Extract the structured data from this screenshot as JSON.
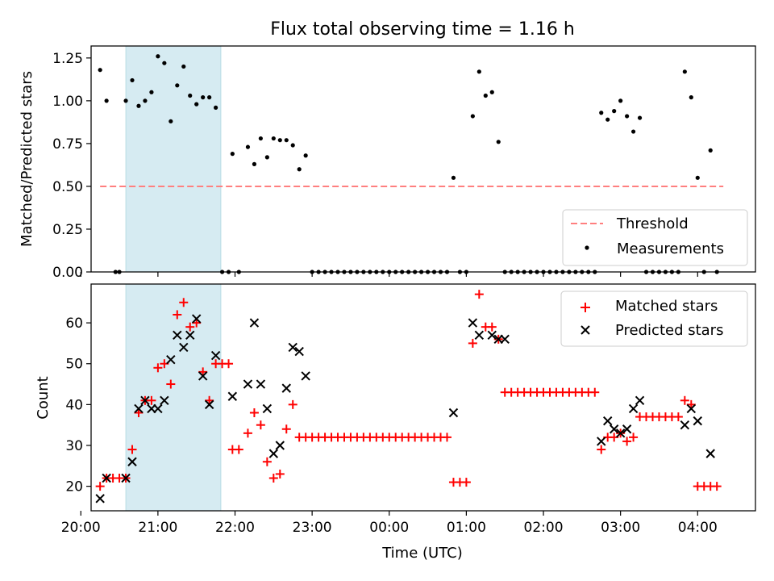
{
  "figure": {
    "title": "Flux total observing time = 1.16 h",
    "xlabel": "Time (UTC)"
  },
  "colors": {
    "highlight": "#add8e6",
    "threshold": "#ff7f7f",
    "measurements": "#000000",
    "matched": "#ff0000",
    "predicted": "#000000"
  },
  "chart_data": [
    {
      "type": "scatter",
      "panel": "top",
      "title": "Flux total observing time = 1.16 h",
      "xlabel": "",
      "ylabel": "Matched/Predicted stars",
      "xlim": [
        "20:08",
        "04:45"
      ],
      "ylim": [
        0,
        1.32
      ],
      "yticks": [
        0.0,
        0.25,
        0.5,
        0.75,
        1.0,
        1.25
      ],
      "ytick_labels": [
        "0.00",
        "0.25",
        "0.50",
        "0.75",
        "1.00",
        "1.25"
      ],
      "xticks": [
        "20:00",
        "21:00",
        "22:00",
        "23:00",
        "00:00",
        "01:00",
        "02:00",
        "03:00",
        "04:00"
      ],
      "highlight_span": [
        "20:35",
        "21:49"
      ],
      "legend": "lower-right",
      "threshold": {
        "name": "Threshold",
        "y": 0.5,
        "x": [
          "20:15",
          "04:20"
        ],
        "style": "dashed"
      },
      "series": [
        {
          "name": "Measurements",
          "marker": "dot",
          "points": [
            [
              "20:15",
              1.18
            ],
            [
              "20:20",
              1.0
            ],
            [
              "20:27",
              0.0
            ],
            [
              "20:30",
              0.0
            ],
            [
              "20:35",
              1.0
            ],
            [
              "20:40",
              1.12
            ],
            [
              "20:45",
              0.97
            ],
            [
              "20:50",
              1.0
            ],
            [
              "20:55",
              1.05
            ],
            [
              "21:00",
              1.26
            ],
            [
              "21:05",
              1.22
            ],
            [
              "21:10",
              0.88
            ],
            [
              "21:15",
              1.09
            ],
            [
              "21:20",
              1.2
            ],
            [
              "21:25",
              1.03
            ],
            [
              "21:30",
              0.98
            ],
            [
              "21:35",
              1.02
            ],
            [
              "21:40",
              1.02
            ],
            [
              "21:45",
              0.96
            ],
            [
              "21:50",
              0.0
            ],
            [
              "21:55",
              0.0
            ],
            [
              "21:58",
              0.69
            ],
            [
              "22:03",
              0.0
            ],
            [
              "22:10",
              0.73
            ],
            [
              "22:15",
              0.63
            ],
            [
              "22:20",
              0.78
            ],
            [
              "22:25",
              0.67
            ],
            [
              "22:30",
              0.78
            ],
            [
              "22:35",
              0.77
            ],
            [
              "22:40",
              0.77
            ],
            [
              "22:45",
              0.74
            ],
            [
              "22:50",
              0.6
            ],
            [
              "22:55",
              0.68
            ],
            [
              "23:00",
              0.0
            ],
            [
              "23:05",
              0.0
            ],
            [
              "23:10",
              0.0
            ],
            [
              "23:15",
              0.0
            ],
            [
              "23:20",
              0.0
            ],
            [
              "23:25",
              0.0
            ],
            [
              "23:30",
              0.0
            ],
            [
              "23:35",
              0.0
            ],
            [
              "23:40",
              0.0
            ],
            [
              "23:45",
              0.0
            ],
            [
              "23:50",
              0.0
            ],
            [
              "23:55",
              0.0
            ],
            [
              "00:00",
              0.0
            ],
            [
              "00:05",
              0.0
            ],
            [
              "00:10",
              0.0
            ],
            [
              "00:15",
              0.0
            ],
            [
              "00:20",
              0.0
            ],
            [
              "00:25",
              0.0
            ],
            [
              "00:30",
              0.0
            ],
            [
              "00:35",
              0.0
            ],
            [
              "00:40",
              0.0
            ],
            [
              "00:45",
              0.0
            ],
            [
              "00:50",
              0.55
            ],
            [
              "00:55",
              0.0
            ],
            [
              "01:00",
              0.0
            ],
            [
              "01:05",
              0.91
            ],
            [
              "01:10",
              1.17
            ],
            [
              "01:15",
              1.03
            ],
            [
              "01:20",
              1.05
            ],
            [
              "01:25",
              0.76
            ],
            [
              "01:30",
              0.0
            ],
            [
              "01:35",
              0.0
            ],
            [
              "01:40",
              0.0
            ],
            [
              "01:45",
              0.0
            ],
            [
              "01:50",
              0.0
            ],
            [
              "01:55",
              0.0
            ],
            [
              "02:00",
              0.0
            ],
            [
              "02:05",
              0.0
            ],
            [
              "02:10",
              0.0
            ],
            [
              "02:15",
              0.0
            ],
            [
              "02:20",
              0.0
            ],
            [
              "02:25",
              0.0
            ],
            [
              "02:30",
              0.0
            ],
            [
              "02:35",
              0.0
            ],
            [
              "02:40",
              0.0
            ],
            [
              "02:45",
              0.93
            ],
            [
              "02:50",
              0.89
            ],
            [
              "02:55",
              0.94
            ],
            [
              "03:00",
              1.0
            ],
            [
              "03:05",
              0.91
            ],
            [
              "03:10",
              0.82
            ],
            [
              "03:15",
              0.9
            ],
            [
              "03:20",
              0.0
            ],
            [
              "03:25",
              0.0
            ],
            [
              "03:30",
              0.0
            ],
            [
              "03:35",
              0.0
            ],
            [
              "03:40",
              0.0
            ],
            [
              "03:45",
              0.0
            ],
            [
              "03:50",
              1.17
            ],
            [
              "03:55",
              1.02
            ],
            [
              "04:00",
              0.55
            ],
            [
              "04:05",
              0.0
            ],
            [
              "04:10",
              0.71
            ],
            [
              "04:15",
              0.0
            ]
          ]
        }
      ]
    },
    {
      "type": "scatter",
      "panel": "bottom",
      "xlabel": "Time (UTC)",
      "ylabel": "Count",
      "xlim": [
        "20:08",
        "04:45"
      ],
      "ylim": [
        14,
        69.5
      ],
      "yticks": [
        20,
        30,
        40,
        50,
        60
      ],
      "ytick_labels": [
        "20",
        "30",
        "40",
        "50",
        "60"
      ],
      "xticks": [
        "20:00",
        "21:00",
        "22:00",
        "23:00",
        "00:00",
        "01:00",
        "02:00",
        "03:00",
        "04:00"
      ],
      "highlight_span": [
        "20:35",
        "21:49"
      ],
      "legend": "top-right",
      "series": [
        {
          "name": "Matched stars",
          "marker": "plus",
          "points": [
            [
              "20:15",
              20
            ],
            [
              "20:20",
              22
            ],
            [
              "20:25",
              22
            ],
            [
              "20:30",
              22
            ],
            [
              "20:35",
              22
            ],
            [
              "20:40",
              29
            ],
            [
              "20:45",
              38
            ],
            [
              "20:50",
              41
            ],
            [
              "20:55",
              41
            ],
            [
              "21:00",
              49
            ],
            [
              "21:05",
              50
            ],
            [
              "21:10",
              45
            ],
            [
              "21:15",
              62
            ],
            [
              "21:20",
              65
            ],
            [
              "21:25",
              59
            ],
            [
              "21:30",
              60
            ],
            [
              "21:35",
              48
            ],
            [
              "21:40",
              41
            ],
            [
              "21:45",
              50
            ],
            [
              "21:50",
              50
            ],
            [
              "21:55",
              50
            ],
            [
              "21:58",
              29
            ],
            [
              "22:03",
              29
            ],
            [
              "22:10",
              33
            ],
            [
              "22:15",
              38
            ],
            [
              "22:20",
              35
            ],
            [
              "22:25",
              26
            ],
            [
              "22:30",
              22
            ],
            [
              "22:35",
              23
            ],
            [
              "22:40",
              34
            ],
            [
              "22:45",
              40
            ],
            [
              "22:50",
              32
            ],
            [
              "22:55",
              32
            ],
            [
              "23:00",
              32
            ],
            [
              "23:05",
              32
            ],
            [
              "23:10",
              32
            ],
            [
              "23:15",
              32
            ],
            [
              "23:20",
              32
            ],
            [
              "23:25",
              32
            ],
            [
              "23:30",
              32
            ],
            [
              "23:35",
              32
            ],
            [
              "23:40",
              32
            ],
            [
              "23:45",
              32
            ],
            [
              "23:50",
              32
            ],
            [
              "23:55",
              32
            ],
            [
              "00:00",
              32
            ],
            [
              "00:05",
              32
            ],
            [
              "00:10",
              32
            ],
            [
              "00:15",
              32
            ],
            [
              "00:20",
              32
            ],
            [
              "00:25",
              32
            ],
            [
              "00:30",
              32
            ],
            [
              "00:35",
              32
            ],
            [
              "00:40",
              32
            ],
            [
              "00:45",
              32
            ],
            [
              "00:50",
              21
            ],
            [
              "00:55",
              21
            ],
            [
              "01:00",
              21
            ],
            [
              "01:05",
              55
            ],
            [
              "01:10",
              67
            ],
            [
              "01:15",
              59
            ],
            [
              "01:20",
              59
            ],
            [
              "01:25",
              56
            ],
            [
              "01:30",
              43
            ],
            [
              "01:35",
              43
            ],
            [
              "01:40",
              43
            ],
            [
              "01:45",
              43
            ],
            [
              "01:50",
              43
            ],
            [
              "01:55",
              43
            ],
            [
              "02:00",
              43
            ],
            [
              "02:05",
              43
            ],
            [
              "02:10",
              43
            ],
            [
              "02:15",
              43
            ],
            [
              "02:20",
              43
            ],
            [
              "02:25",
              43
            ],
            [
              "02:30",
              43
            ],
            [
              "02:35",
              43
            ],
            [
              "02:40",
              43
            ],
            [
              "02:45",
              29
            ],
            [
              "02:50",
              32
            ],
            [
              "02:55",
              32
            ],
            [
              "03:00",
              33
            ],
            [
              "03:05",
              31
            ],
            [
              "03:10",
              32
            ],
            [
              "03:15",
              37
            ],
            [
              "03:20",
              37
            ],
            [
              "03:25",
              37
            ],
            [
              "03:30",
              37
            ],
            [
              "03:35",
              37
            ],
            [
              "03:40",
              37
            ],
            [
              "03:45",
              37
            ],
            [
              "03:50",
              41
            ],
            [
              "03:55",
              40
            ],
            [
              "04:00",
              20
            ],
            [
              "04:05",
              20
            ],
            [
              "04:10",
              20
            ],
            [
              "04:15",
              20
            ]
          ]
        },
        {
          "name": "Predicted stars",
          "marker": "x",
          "points": [
            [
              "20:15",
              17
            ],
            [
              "20:20",
              22
            ],
            [
              "20:35",
              22
            ],
            [
              "20:40",
              26
            ],
            [
              "20:45",
              39
            ],
            [
              "20:50",
              41
            ],
            [
              "20:55",
              39
            ],
            [
              "21:00",
              39
            ],
            [
              "21:05",
              41
            ],
            [
              "21:10",
              51
            ],
            [
              "21:15",
              57
            ],
            [
              "21:20",
              54
            ],
            [
              "21:25",
              57
            ],
            [
              "21:30",
              61
            ],
            [
              "21:35",
              47
            ],
            [
              "21:40",
              40
            ],
            [
              "21:45",
              52
            ],
            [
              "21:58",
              42
            ],
            [
              "22:10",
              45
            ],
            [
              "22:15",
              60
            ],
            [
              "22:20",
              45
            ],
            [
              "22:25",
              39
            ],
            [
              "22:30",
              28
            ],
            [
              "22:35",
              30
            ],
            [
              "22:40",
              44
            ],
            [
              "22:45",
              54
            ],
            [
              "22:50",
              53
            ],
            [
              "22:55",
              47
            ],
            [
              "00:50",
              38
            ],
            [
              "01:05",
              60
            ],
            [
              "01:10",
              57
            ],
            [
              "01:20",
              57
            ],
            [
              "01:25",
              56
            ],
            [
              "01:30",
              56
            ],
            [
              "02:45",
              31
            ],
            [
              "02:50",
              36
            ],
            [
              "02:55",
              34
            ],
            [
              "03:00",
              33
            ],
            [
              "03:05",
              34
            ],
            [
              "03:10",
              39
            ],
            [
              "03:15",
              41
            ],
            [
              "03:50",
              35
            ],
            [
              "03:55",
              39
            ],
            [
              "04:00",
              36
            ],
            [
              "04:10",
              28
            ]
          ]
        }
      ]
    }
  ]
}
